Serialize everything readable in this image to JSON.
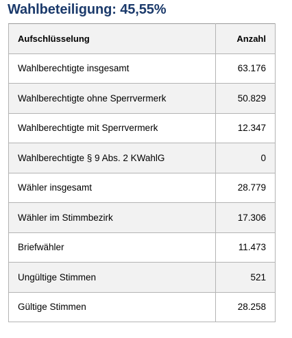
{
  "heading": "Wahlbeteiligung: 45,55%",
  "table": {
    "columns": {
      "label": "Aufschlüsselung",
      "value": "Anzahl"
    },
    "rows": [
      {
        "label": "Wahlberechtigte insgesamt",
        "value": "63.176"
      },
      {
        "label": "Wahlberechtigte ohne Sperrvermerk",
        "value": "50.829"
      },
      {
        "label": "Wahlberechtigte mit Sperrvermerk",
        "value": "12.347"
      },
      {
        "label": "Wahlberechtigte § 9 Abs. 2 KWahlG",
        "value": "0"
      },
      {
        "label": "Wähler insgesamt",
        "value": "28.779"
      },
      {
        "label": "Wähler im Stimmbezirk",
        "value": "17.306"
      },
      {
        "label": "Briefwähler",
        "value": "11.473"
      },
      {
        "label": "Ungültige Stimmen",
        "value": "521"
      },
      {
        "label": "Gültige Stimmen",
        "value": "28.258"
      }
    ]
  },
  "colors": {
    "heading": "#1b3a6b",
    "header_background": "#f2f2f2",
    "alternate_row_background": "#f2f2f2",
    "border": "#b3b3b3"
  }
}
